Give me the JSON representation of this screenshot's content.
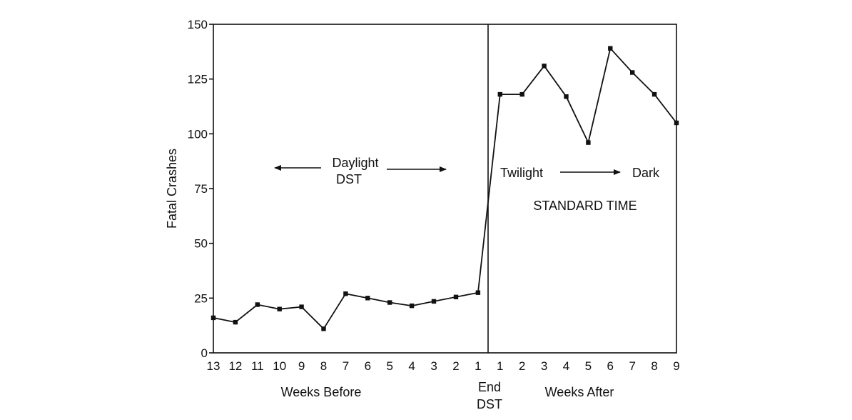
{
  "chart_data": {
    "type": "line",
    "title": "",
    "ylabel": "Fatal Crashes",
    "ylim": [
      0,
      150
    ],
    "yticks": [
      0,
      25,
      50,
      75,
      100,
      125,
      150
    ],
    "xtick_labels": [
      "13",
      "12",
      "11",
      "10",
      "9",
      "8",
      "7",
      "6",
      "5",
      "4",
      "3",
      "2",
      "1",
      "1",
      "2",
      "3",
      "4",
      "5",
      "6",
      "7",
      "8",
      "9"
    ],
    "x_group_labels": {
      "before": "Weeks Before",
      "end_line1": "End",
      "end_line2": "DST",
      "after": "Weeks After"
    },
    "series": [
      {
        "values": [
          16,
          14,
          22,
          20,
          21,
          11,
          27,
          25,
          23,
          21.5,
          23.5,
          25.5,
          27.5,
          118,
          118,
          131,
          117,
          96,
          139,
          128,
          118,
          105
        ]
      }
    ],
    "annotations": {
      "daylight_line1": "Daylight",
      "daylight_line2": "DST",
      "twilight": "Twilight",
      "dark": "Dark",
      "standard_time": "STANDARD TIME"
    },
    "grid": false,
    "colors": {
      "line": "#111111",
      "background": "#ffffff"
    }
  }
}
